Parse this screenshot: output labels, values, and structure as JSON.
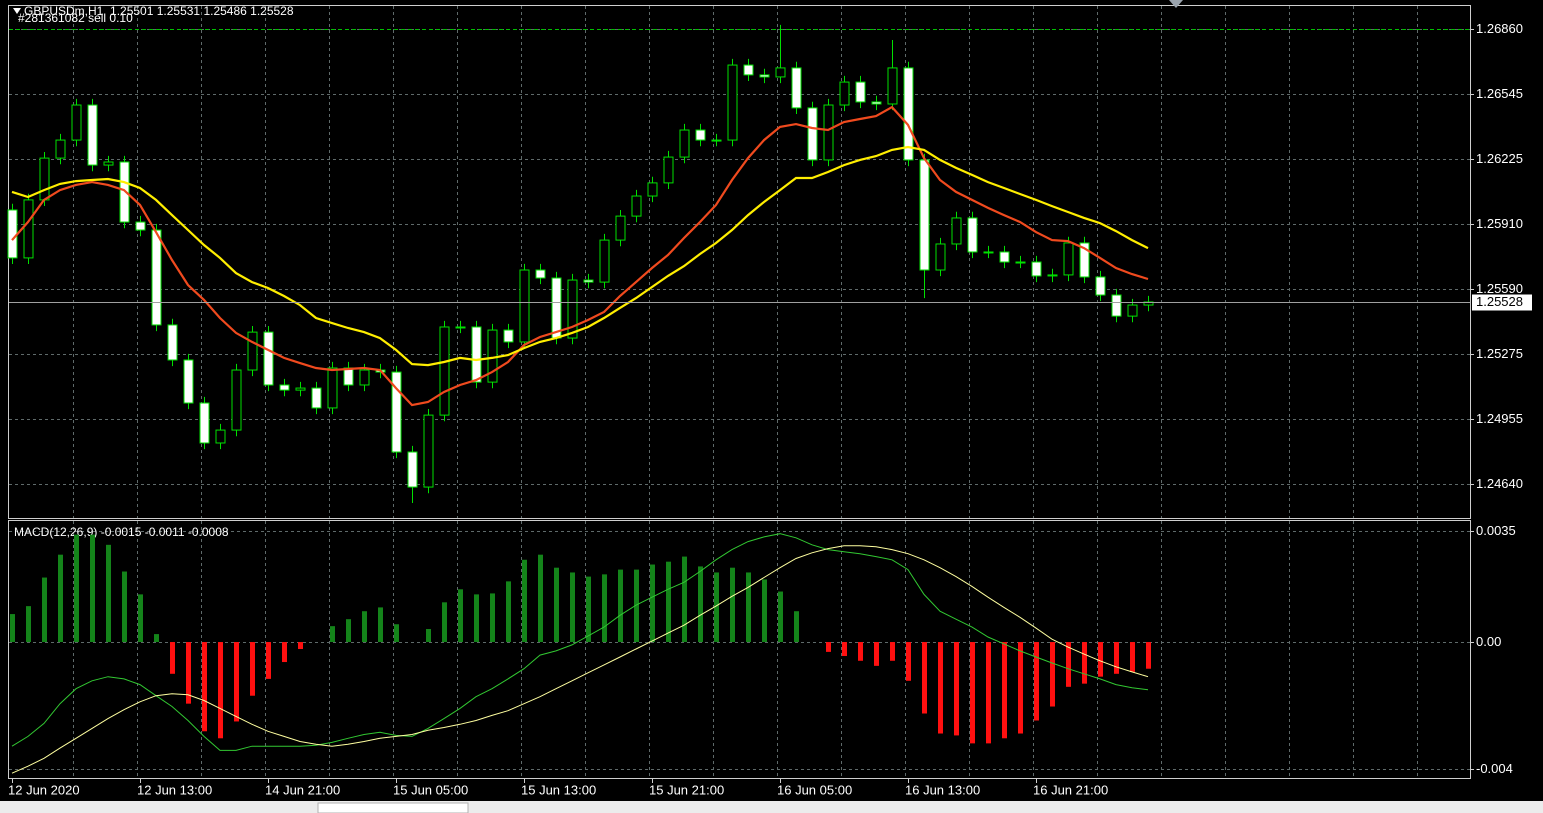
{
  "chart_data": [
    {
      "type": "candlestick",
      "title": "GBPUSDm,H1  1.25501 1.25531 1.25486 1.25528",
      "order": {
        "label": "#281361082 sell 0.10",
        "price": 1.26862,
        "color": "#00c000"
      },
      "current_price": 1.25528,
      "up_color": "#000000",
      "down_color": "#ffffff",
      "outline_color": "#00e000",
      "open": [
        1.25977,
        1.25743,
        1.26026,
        1.2623,
        1.26318,
        1.26489,
        1.26196,
        1.26211,
        1.25918,
        1.25879,
        1.25416,
        1.25245,
        1.25035,
        1.2484,
        1.24903,
        1.25196,
        1.25381,
        1.25123,
        1.25098,
        1.25108,
        1.25011,
        1.25206,
        1.25123,
        1.25196,
        1.25186,
        1.24796,
        1.24625,
        1.24976,
        1.25406,
        1.25406,
        1.25137,
        1.25391,
        1.25333,
        1.25684,
        1.25645,
        1.25352,
        1.25635,
        1.25625,
        1.2583,
        1.25947,
        1.26045,
        1.26109,
        1.26235,
        1.26367,
        1.26318,
        1.26318,
        1.26684,
        1.26636,
        1.26626,
        1.2667,
        1.26475,
        1.26221,
        1.26489,
        1.26601,
        1.26504,
        1.26494,
        1.2667,
        1.26221,
        1.25684,
        1.25811,
        1.25938,
        1.25772,
        1.25772,
        1.25723,
        1.25723,
        1.25655,
        1.2566,
        1.25816,
        1.2565,
        1.25562,
        1.25459,
        1.25513
      ],
      "high": [
        1.26007,
        1.26056,
        1.2626,
        1.26348,
        1.26519,
        1.26519,
        1.26241,
        1.26241,
        1.25948,
        1.25909,
        1.25446,
        1.25275,
        1.25065,
        1.24933,
        1.25226,
        1.25411,
        1.25411,
        1.25153,
        1.25138,
        1.25138,
        1.25236,
        1.25236,
        1.25226,
        1.25226,
        1.25216,
        1.24826,
        1.25006,
        1.25436,
        1.25436,
        1.25436,
        1.25421,
        1.25421,
        1.25714,
        1.25714,
        1.25675,
        1.25665,
        1.25665,
        1.2586,
        1.25977,
        1.26075,
        1.26139,
        1.26265,
        1.26397,
        1.26397,
        1.26348,
        1.26714,
        1.26714,
        1.26666,
        1.2688,
        1.267,
        1.26505,
        1.26519,
        1.26631,
        1.26631,
        1.26534,
        1.26806,
        1.267,
        1.26251,
        1.25841,
        1.25968,
        1.25968,
        1.25802,
        1.25802,
        1.25753,
        1.25753,
        1.2569,
        1.25846,
        1.25846,
        1.2568,
        1.25592,
        1.25543,
        1.25558
      ],
      "low": [
        1.25713,
        1.25713,
        1.25996,
        1.262,
        1.26288,
        1.26166,
        1.26166,
        1.25888,
        1.25849,
        1.25386,
        1.25215,
        1.25005,
        1.2481,
        1.2481,
        1.24873,
        1.25166,
        1.25093,
        1.25068,
        1.25068,
        1.24981,
        1.24981,
        1.25093,
        1.25093,
        1.25156,
        1.24766,
        1.24547,
        1.24595,
        1.24946,
        1.25376,
        1.25107,
        1.25107,
        1.25303,
        1.25303,
        1.25615,
        1.25322,
        1.25322,
        1.25595,
        1.25595,
        1.258,
        1.25917,
        1.26015,
        1.26079,
        1.26205,
        1.26288,
        1.26288,
        1.26288,
        1.26606,
        1.26596,
        1.26596,
        1.26445,
        1.26191,
        1.26191,
        1.26459,
        1.26474,
        1.26464,
        1.26464,
        1.26191,
        1.25547,
        1.25654,
        1.25781,
        1.25742,
        1.25742,
        1.25693,
        1.25693,
        1.25625,
        1.25625,
        1.2563,
        1.2562,
        1.25532,
        1.25429,
        1.25429,
        1.25483
      ],
      "close": [
        1.25743,
        1.26026,
        1.2623,
        1.26318,
        1.26489,
        1.26196,
        1.26211,
        1.25918,
        1.25879,
        1.25416,
        1.25245,
        1.25035,
        1.2484,
        1.24903,
        1.25196,
        1.25381,
        1.25123,
        1.25098,
        1.25108,
        1.25011,
        1.25206,
        1.25123,
        1.25196,
        1.25186,
        1.24796,
        1.24625,
        1.24976,
        1.25406,
        1.25406,
        1.25137,
        1.25391,
        1.25333,
        1.25684,
        1.25645,
        1.25352,
        1.25635,
        1.25625,
        1.2583,
        1.25947,
        1.26045,
        1.26109,
        1.26235,
        1.26367,
        1.26318,
        1.26318,
        1.26684,
        1.26636,
        1.26626,
        1.2667,
        1.26475,
        1.26221,
        1.26489,
        1.26601,
        1.26504,
        1.26494,
        1.2667,
        1.26221,
        1.25684,
        1.25811,
        1.25938,
        1.25772,
        1.25772,
        1.25723,
        1.25723,
        1.25655,
        1.2566,
        1.25816,
        1.2565,
        1.25562,
        1.25459,
        1.25513,
        1.25528
      ],
      "series": [
        {
          "color": "#f04a1e",
          "values": [
            1.2583,
            1.25918,
            1.26026,
            1.26074,
            1.26099,
            1.26113,
            1.26099,
            1.26074,
            1.26001,
            1.25869,
            1.25733,
            1.25611,
            1.25538,
            1.2545,
            1.25377,
            1.25333,
            1.25294,
            1.25255,
            1.2523,
            1.25206,
            1.25196,
            1.25201,
            1.25206,
            1.25196,
            1.25108,
            1.25025,
            1.2504,
            1.25089,
            1.25123,
            1.25147,
            1.25186,
            1.25235,
            1.25318,
            1.25357,
            1.25381,
            1.25406,
            1.2544,
            1.25479,
            1.25557,
            1.25625,
            1.25694,
            1.25757,
            1.2584,
            1.25918,
            1.26001,
            1.26123,
            1.2623,
            1.26318,
            1.26382,
            1.26396,
            1.26377,
            1.26367,
            1.26406,
            1.26421,
            1.26435,
            1.26479,
            1.26392,
            1.2623,
            1.26123,
            1.26065,
            1.26026,
            1.25987,
            1.25952,
            1.25918,
            1.25869,
            1.2583,
            1.25825,
            1.25791,
            1.25743,
            1.25694,
            1.25664,
            1.2564
          ]
        },
        {
          "color": "#ffee00",
          "values": [
            1.26065,
            1.2604,
            1.26074,
            1.26104,
            1.26118,
            1.26123,
            1.26128,
            1.26113,
            1.26084,
            1.26026,
            1.25952,
            1.25879,
            1.25806,
            1.25743,
            1.25669,
            1.25625,
            1.25596,
            1.25557,
            1.25513,
            1.2545,
            1.25425,
            1.25401,
            1.25381,
            1.25352,
            1.25294,
            1.25225,
            1.2522,
            1.25235,
            1.25255,
            1.25245,
            1.25255,
            1.25269,
            1.25303,
            1.25333,
            1.25352,
            1.25377,
            1.25406,
            1.2545,
            1.25499,
            1.25547,
            1.25601,
            1.25655,
            1.25703,
            1.25762,
            1.25816,
            1.25879,
            1.25952,
            1.26016,
            1.26074,
            1.26133,
            1.26133,
            1.26162,
            1.26196,
            1.26221,
            1.2624,
            1.2627,
            1.26284,
            1.2627,
            1.26221,
            1.26182,
            1.26148,
            1.26113,
            1.26084,
            1.26055,
            1.26026,
            1.25996,
            1.25967,
            1.25938,
            1.25913,
            1.25874,
            1.2583,
            1.25791
          ]
        }
      ],
      "ylim": [
        1.24474,
        1.26977
      ],
      "yticks": [
        {
          "value": 1.2686,
          "label": "1.26860"
        },
        1.26545,
        1.26225,
        {
          "value": 1.2591,
          "label": "1.25910"
        },
        {
          "value": 1.2559,
          "label": "1.25590"
        },
        1.25275,
        1.24955,
        {
          "value": 1.2464,
          "label": "1.24640"
        }
      ],
      "grid": true
    },
    {
      "type": "macd",
      "title": "MACD(12,26,9) -0.0015 -0.0011 -0.0008",
      "categories": [
        "12 Jun 2020",
        null,
        null,
        null,
        null,
        null,
        null,
        null,
        "12 Jun 13:00",
        null,
        null,
        null,
        null,
        null,
        null,
        null,
        "14 Jun 21:00",
        null,
        null,
        null,
        null,
        null,
        null,
        null,
        "15 Jun 05:00",
        null,
        null,
        null,
        null,
        null,
        null,
        null,
        "15 Jun 13:00",
        null,
        null,
        null,
        null,
        null,
        null,
        null,
        "15 Jun 21:00",
        null,
        null,
        null,
        null,
        null,
        null,
        null,
        "16 Jun 05:00",
        null,
        null,
        null,
        null,
        null,
        null,
        null,
        "16 Jun 13:00",
        null,
        null,
        null,
        null,
        null,
        null,
        null,
        "16 Jun 21:00",
        null,
        null,
        null,
        null,
        null,
        null,
        null
      ],
      "values": [
        0.00088,
        0.00113,
        0.00203,
        0.00275,
        0.00338,
        0.00338,
        0.00306,
        0.00222,
        0.0015,
        0.00025,
        -0.001,
        -0.00194,
        -0.00281,
        -0.00303,
        -0.0025,
        -0.00169,
        -0.00116,
        -0.00063,
        -0.00022,
        0,
        0.0005,
        0.00072,
        0.00097,
        0.00109,
        0.00056,
        0,
        0.00041,
        0.00125,
        0.00166,
        0.0015,
        0.00153,
        0.00191,
        0.00259,
        0.00275,
        0.00234,
        0.00219,
        0.00206,
        0.00213,
        0.00228,
        0.00228,
        0.00244,
        0.00253,
        0.00269,
        0.00238,
        0.00219,
        0.00234,
        0.00219,
        0.00197,
        0.00159,
        0.00097,
        0,
        -0.00031,
        -0.00044,
        -0.00059,
        -0.00075,
        -0.00059,
        -0.00122,
        -0.00225,
        -0.00288,
        -0.00294,
        -0.00319,
        -0.00319,
        -0.00303,
        -0.00288,
        -0.00247,
        -0.00203,
        -0.00141,
        -0.00131,
        -0.00109,
        -0.001,
        -0.00094,
        -0.00084
      ],
      "up_color": "#14841a",
      "down_color": "#ff1010",
      "series": [
        {
          "color": "#32c832",
          "values": [
            -0.00328,
            -0.00297,
            -0.00256,
            -0.00194,
            -0.00147,
            -0.00122,
            -0.00109,
            -0.00116,
            -0.00134,
            -0.00169,
            -0.00203,
            -0.00247,
            -0.00297,
            -0.00341,
            -0.00341,
            -0.00328,
            -0.00328,
            -0.00328,
            -0.00328,
            -0.00325,
            -0.00316,
            -0.00303,
            -0.00291,
            -0.00284,
            -0.00294,
            -0.00297,
            -0.00272,
            -0.00241,
            -0.00209,
            -0.00172,
            -0.00147,
            -0.00116,
            -0.00084,
            -0.00041,
            -0.00028,
            -9e-05,
            0.00019,
            0.00047,
            0.00084,
            0.00116,
            0.00141,
            0.00166,
            0.00188,
            0.00222,
            0.00259,
            0.00291,
            0.00316,
            0.00331,
            0.00341,
            0.00328,
            0.00306,
            0.00291,
            0.00284,
            0.00278,
            0.00269,
            0.00259,
            0.00228,
            0.0015,
            0.00097,
            0.00072,
            0.00047,
            0.00016,
            -6e-05,
            -0.00028,
            -0.00047,
            -0.00066,
            -0.00084,
            -0.001,
            -0.00116,
            -0.00134,
            -0.00144,
            -0.0015
          ]
        },
        {
          "color": "#ffffa0",
          "values": [
            -0.00413,
            -0.00391,
            -0.00366,
            -0.00334,
            -0.00303,
            -0.00272,
            -0.00241,
            -0.00213,
            -0.00188,
            -0.00169,
            -0.00163,
            -0.00166,
            -0.00184,
            -0.00209,
            -0.00234,
            -0.00259,
            -0.00281,
            -0.00297,
            -0.00313,
            -0.00322,
            -0.00328,
            -0.00322,
            -0.00313,
            -0.00303,
            -0.00297,
            -0.00291,
            -0.00278,
            -0.00269,
            -0.00259,
            -0.00247,
            -0.00231,
            -0.00216,
            -0.00194,
            -0.00172,
            -0.00147,
            -0.00122,
            -0.00097,
            -0.00072,
            -0.00047,
            -0.00022,
            3e-05,
            0.00028,
            0.00053,
            0.00084,
            0.00113,
            0.00144,
            0.00172,
            0.00203,
            0.00234,
            0.00263,
            0.00281,
            0.00294,
            0.00303,
            0.00303,
            0.003,
            0.00291,
            0.00278,
            0.00259,
            0.00234,
            0.00206,
            0.00175,
            0.00141,
            0.00109,
            0.00078,
            0.00044,
            9e-05,
            -0.00016,
            -0.00038,
            -0.00059,
            -0.00078,
            -0.00094,
            -0.00109
          ]
        }
      ],
      "ylim": [
        -0.00428,
        0.00381
      ],
      "yticks": [
        0.0035,
        {
          "value": 0,
          "label": "0.00"
        },
        -0.004
      ],
      "grid": true
    }
  ]
}
